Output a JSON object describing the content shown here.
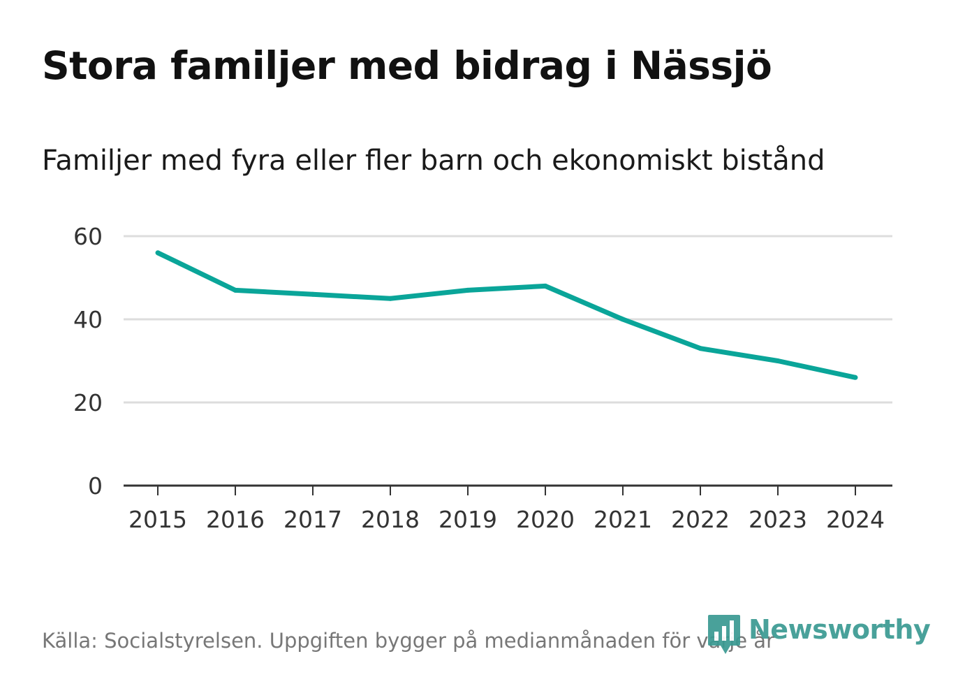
{
  "title": "Stora familjer med bidrag i Nässjö",
  "subtitle": "Familjer med fyra eller fler barn och ekonomiskt bistånd",
  "source": "Källa: Socialstyrelsen. Uppgiften bygger på medianmånaden för varje år",
  "brand": {
    "name": "Newsworthy",
    "icon": "bar-chart-logo-icon",
    "color": "#3a9a92"
  },
  "colors": {
    "line": "#0aa599",
    "grid": "#dddddd",
    "axis": "#333333"
  },
  "chart_data": {
    "type": "line",
    "title": "Stora familjer med bidrag i Nässjö",
    "subtitle": "Familjer med fyra eller fler barn och ekonomiskt bistånd",
    "xlabel": "",
    "ylabel": "",
    "x": [
      "2015",
      "2016",
      "2017",
      "2018",
      "2019",
      "2020",
      "2021",
      "2022",
      "2023",
      "2024"
    ],
    "series": [
      {
        "name": "Familjer med fyra eller fler barn och ekonomiskt bistånd",
        "values": [
          56,
          47,
          46,
          45,
          47,
          48,
          40,
          33,
          30,
          26
        ]
      }
    ],
    "ylim": [
      0,
      60
    ],
    "yticks": [
      0,
      20,
      40,
      60
    ],
    "grid": true,
    "legend": "none"
  }
}
